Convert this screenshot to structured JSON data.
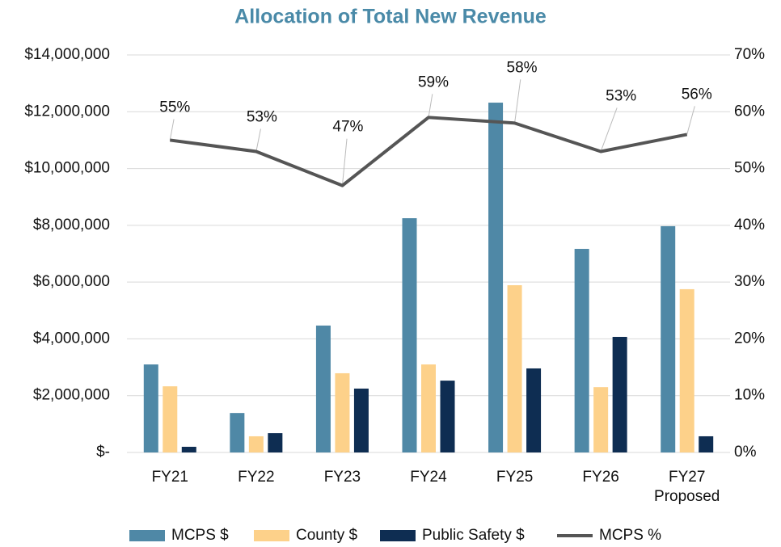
{
  "chart_data": {
    "type": "bar_line",
    "title": "Allocation of Total New Revenue",
    "categories": [
      "FY21",
      "FY22",
      "FY23",
      "FY24",
      "FY25",
      "FY26",
      "FY27 Proposed"
    ],
    "series": [
      {
        "name": "MCPS $",
        "type": "bar",
        "color": "#4f88a6",
        "values": [
          3100000,
          1390000,
          4470000,
          8250000,
          12320000,
          7170000,
          7970000
        ]
      },
      {
        "name": "County $",
        "type": "bar",
        "color": "#fdd18a",
        "values": [
          2330000,
          570000,
          2790000,
          3100000,
          5890000,
          2300000,
          5750000
        ]
      },
      {
        "name": "Public Safety $",
        "type": "bar",
        "color": "#0e2d52",
        "values": [
          200000,
          680000,
          2250000,
          2530000,
          2960000,
          4070000,
          570000
        ]
      },
      {
        "name": "MCPS %",
        "type": "line",
        "axis": "y2",
        "color": "#555555",
        "values": [
          55,
          53,
          47,
          59,
          58,
          53,
          56
        ],
        "value_labels": [
          "55%",
          "53%",
          "47%",
          "59%",
          "58%",
          "53%",
          "56%"
        ]
      }
    ],
    "ylim": [
      0,
      14000000
    ],
    "yticks": [
      {
        "value": 0,
        "label": "$-"
      },
      {
        "value": 2000000,
        "label": "$2,000,000"
      },
      {
        "value": 4000000,
        "label": "$4,000,000"
      },
      {
        "value": 6000000,
        "label": "$6,000,000"
      },
      {
        "value": 8000000,
        "label": "$8,000,000"
      },
      {
        "value": 10000000,
        "label": "$10,000,000"
      },
      {
        "value": 12000000,
        "label": "$12,000,000"
      },
      {
        "value": 14000000,
        "label": "$14,000,000"
      }
    ],
    "y2lim": [
      0,
      70
    ],
    "y2ticks": [
      {
        "value": 0,
        "label": "0%"
      },
      {
        "value": 10,
        "label": "10%"
      },
      {
        "value": 20,
        "label": "20%"
      },
      {
        "value": 30,
        "label": "30%"
      },
      {
        "value": 40,
        "label": "40%"
      },
      {
        "value": 50,
        "label": "50%"
      },
      {
        "value": 60,
        "label": "60%"
      },
      {
        "value": 70,
        "label": "70%"
      }
    ],
    "grid": true,
    "legend": "bottom"
  }
}
